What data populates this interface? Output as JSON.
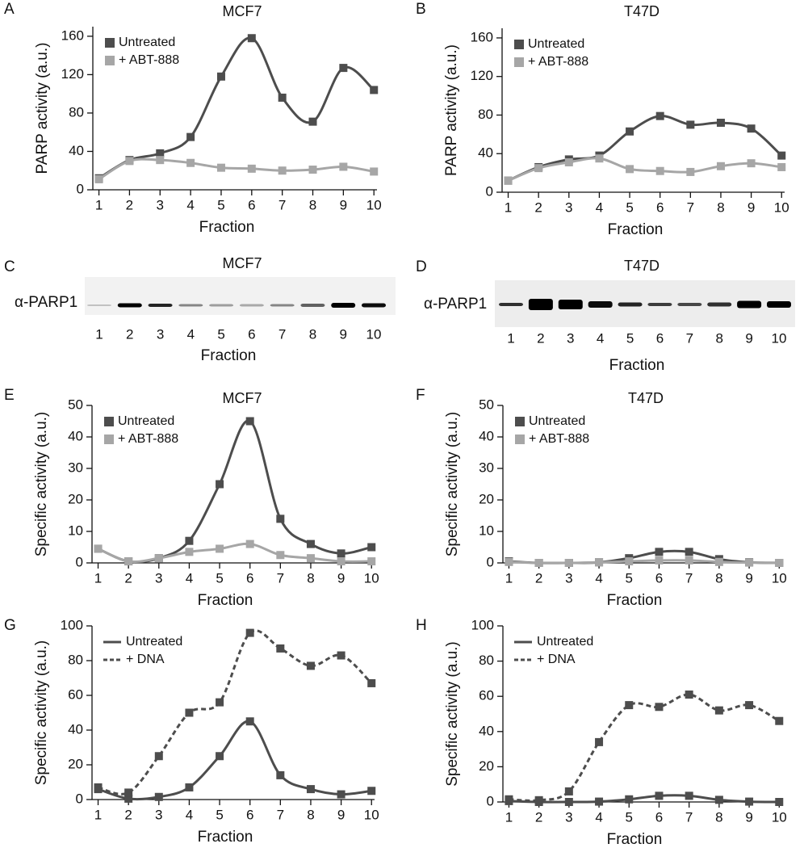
{
  "chart_data": [
    {
      "type": "line",
      "panel": "A",
      "title": "MCF7",
      "xlabel": "Fraction",
      "ylabel": "PARP activity (a.u.)",
      "x": [
        1,
        2,
        3,
        4,
        5,
        6,
        7,
        8,
        9,
        10
      ],
      "xlim": [
        0.8,
        10.1
      ],
      "xticks": [
        1,
        2,
        3,
        4,
        5,
        6,
        7,
        8,
        9,
        10
      ],
      "ylim": [
        0,
        170
      ],
      "yticks": [
        0,
        40,
        80,
        120,
        160
      ],
      "legend": "top-left",
      "legend_style": "square",
      "series": [
        {
          "name": "Untreated",
          "color": "#4d4d4d",
          "dashed": false,
          "values": [
            12,
            31,
            38,
            55,
            118,
            158,
            96,
            71,
            127,
            104
          ]
        },
        {
          "name": "+ ABT-888",
          "color": "#a6a6a6",
          "dashed": false,
          "values": [
            11,
            30,
            31,
            28,
            23,
            22,
            20,
            21,
            24,
            19
          ]
        }
      ]
    },
    {
      "type": "line",
      "panel": "B",
      "title": "T47D",
      "xlabel": "Fraction",
      "ylabel": "PARP activity (a.u.)",
      "x": [
        1,
        2,
        3,
        4,
        5,
        6,
        7,
        8,
        9,
        10
      ],
      "xlim": [
        0.8,
        10.1
      ],
      "xticks": [
        1,
        2,
        3,
        4,
        5,
        6,
        7,
        8,
        9,
        10
      ],
      "ylim": [
        0,
        170
      ],
      "yticks": [
        0,
        40,
        80,
        120,
        160
      ],
      "legend": "top-left",
      "legend_style": "square",
      "series": [
        {
          "name": "Untreated",
          "color": "#4d4d4d",
          "dashed": false,
          "values": [
            12,
            26,
            34,
            38,
            63,
            79,
            70,
            72,
            66,
            38
          ]
        },
        {
          "name": "+ ABT-888",
          "color": "#a6a6a6",
          "dashed": false,
          "values": [
            12,
            25,
            31,
            35,
            24,
            22,
            21,
            27,
            30,
            26
          ]
        }
      ]
    },
    {
      "type": "line",
      "panel": "E",
      "title": "MCF7",
      "xlabel": "Fraction",
      "ylabel": "Specific activity (a.u.)",
      "x": [
        1,
        2,
        3,
        4,
        5,
        6,
        7,
        8,
        9,
        10
      ],
      "xlim": [
        0.8,
        10.1
      ],
      "xticks": [
        1,
        2,
        3,
        4,
        5,
        6,
        7,
        8,
        9,
        10
      ],
      "ylim": [
        0,
        50
      ],
      "yticks": [
        0,
        10,
        20,
        30,
        40,
        50
      ],
      "legend": "top-left",
      "legend_style": "square",
      "series": [
        {
          "name": "Untreated",
          "color": "#4d4d4d",
          "dashed": false,
          "values": [
            4.5,
            0.5,
            1.5,
            7,
            25,
            45,
            14,
            6,
            3,
            5
          ]
        },
        {
          "name": "+ ABT-888",
          "color": "#a6a6a6",
          "dashed": false,
          "values": [
            4.5,
            0.5,
            1.5,
            3.5,
            4.5,
            6,
            2.5,
            1.5,
            0.5,
            0.5
          ]
        }
      ]
    },
    {
      "type": "line",
      "panel": "F",
      "title": "T47D",
      "xlabel": "Fraction",
      "ylabel": "Specific activity (a.u.)",
      "x": [
        1,
        2,
        3,
        4,
        5,
        6,
        7,
        8,
        9,
        10
      ],
      "xlim": [
        0.8,
        10.1
      ],
      "xticks": [
        1,
        2,
        3,
        4,
        5,
        6,
        7,
        8,
        9,
        10
      ],
      "ylim": [
        0,
        50
      ],
      "yticks": [
        0,
        10,
        20,
        30,
        40,
        50
      ],
      "legend": "top-left",
      "legend_style": "square",
      "series": [
        {
          "name": "Untreated",
          "color": "#4d4d4d",
          "dashed": false,
          "values": [
            0.5,
            0,
            0,
            0.2,
            1.5,
            3.5,
            3.5,
            1.2,
            0.2,
            0
          ]
        },
        {
          "name": "+ ABT-888",
          "color": "#a6a6a6",
          "dashed": false,
          "values": [
            0.3,
            0,
            0,
            0.2,
            0.5,
            0.8,
            0.8,
            0.3,
            0.1,
            0
          ]
        }
      ]
    },
    {
      "type": "line",
      "panel": "G",
      "xlabel": "Fraction",
      "ylabel": "Specific activity (a.u.)",
      "x": [
        1,
        2,
        3,
        4,
        5,
        6,
        7,
        8,
        9,
        10
      ],
      "xlim": [
        0.8,
        10.1
      ],
      "xticks": [
        1,
        2,
        3,
        4,
        5,
        6,
        7,
        8,
        9,
        10
      ],
      "ylim": [
        0,
        100
      ],
      "yticks": [
        0,
        20,
        40,
        60,
        80,
        100
      ],
      "legend": "top-left",
      "legend_style": "line",
      "series": [
        {
          "name": "Untreated",
          "color": "#4d4d4d",
          "dashed": false,
          "values": [
            6,
            0.5,
            1.5,
            7,
            25,
            45,
            14,
            6,
            3,
            5
          ]
        },
        {
          "name": "+ DNA",
          "color": "#4d4d4d",
          "dashed": true,
          "values": [
            7,
            4,
            25,
            50,
            56,
            96,
            87,
            77,
            83,
            67
          ]
        }
      ]
    },
    {
      "type": "line",
      "panel": "H",
      "xlabel": "Fraction",
      "ylabel": "Specific activity (a.u.)",
      "x": [
        1,
        2,
        3,
        4,
        5,
        6,
        7,
        8,
        9,
        10
      ],
      "xlim": [
        0.8,
        10.1
      ],
      "xticks": [
        1,
        2,
        3,
        4,
        5,
        6,
        7,
        8,
        9,
        10
      ],
      "ylim": [
        0,
        100
      ],
      "yticks": [
        0,
        20,
        40,
        60,
        80,
        100
      ],
      "legend": "top-left",
      "legend_style": "line",
      "series": [
        {
          "name": "Untreated",
          "color": "#4d4d4d",
          "dashed": false,
          "values": [
            0.5,
            0,
            0,
            0.2,
            1.5,
            3.5,
            3.5,
            1.2,
            0.2,
            0
          ]
        },
        {
          "name": "+ DNA",
          "color": "#4d4d4d",
          "dashed": true,
          "values": [
            1.5,
            1,
            6,
            34,
            55,
            54,
            61,
            52,
            55,
            46
          ]
        }
      ]
    }
  ],
  "blots": [
    {
      "panel": "C",
      "title": "MCF7",
      "label": "α-PARP1",
      "lanes": [
        "1",
        "2",
        "3",
        "4",
        "5",
        "6",
        "7",
        "8",
        "9",
        "10"
      ],
      "xlabel": "Fraction"
    },
    {
      "panel": "D",
      "title": "T47D",
      "label": "α-PARP1",
      "lanes": [
        "1",
        "2",
        "3",
        "4",
        "5",
        "6",
        "7",
        "8",
        "9",
        "10"
      ],
      "xlabel": "Fraction"
    }
  ]
}
